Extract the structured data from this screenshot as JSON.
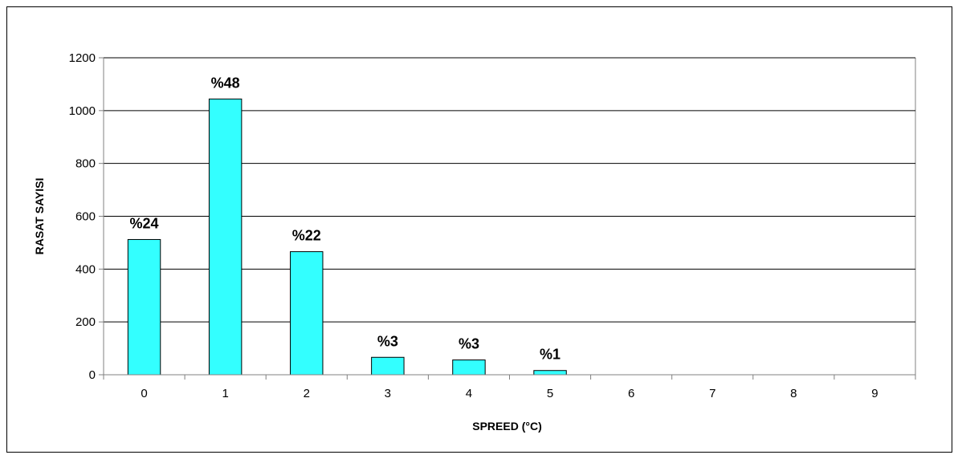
{
  "chart_data": {
    "type": "bar",
    "categories": [
      "0",
      "1",
      "2",
      "3",
      "4",
      "5",
      "6",
      "7",
      "8",
      "9"
    ],
    "values": [
      512,
      1044,
      466,
      66,
      56,
      16,
      0,
      0,
      0,
      0
    ],
    "data_labels": [
      "%24",
      "%48",
      "%22",
      "%3",
      "%3",
      "%1",
      "",
      "",
      "",
      ""
    ],
    "xlabel": "SPREED (°C)",
    "ylabel": "RASAT SAYISI",
    "ylim": [
      0,
      1200
    ],
    "yticks": [
      0,
      200,
      400,
      600,
      800,
      1000,
      1200
    ],
    "grid": true,
    "legend": "none",
    "colors": {
      "bar_fill": "#33ffff",
      "bar_stroke": "#000000",
      "grid": "#000000",
      "axis": "#808080"
    }
  }
}
